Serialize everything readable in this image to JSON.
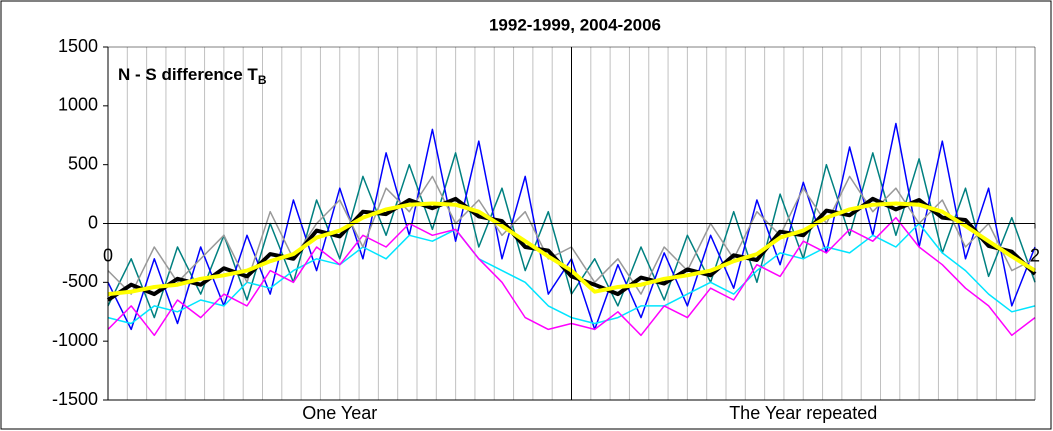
{
  "chart_data": {
    "type": "line",
    "title": "1992-1999, 2004-2006",
    "annotation": {
      "text": "N - S difference T",
      "subscript": "B"
    },
    "section_labels": [
      "One Year",
      "The Year repeated"
    ],
    "xlim": [
      0,
      2
    ],
    "xticks": [
      0,
      2
    ],
    "ylim": [
      -1500,
      1500
    ],
    "yticks": [
      -1500,
      -1000,
      -500,
      0,
      500,
      1000,
      1500
    ],
    "x": [
      0,
      0.05,
      0.1,
      0.15,
      0.2,
      0.25,
      0.3,
      0.35,
      0.4,
      0.45,
      0.5,
      0.55,
      0.6,
      0.65,
      0.7,
      0.75,
      0.8,
      0.85,
      0.9,
      0.95,
      1,
      1.05,
      1.1,
      1.15,
      1.2,
      1.25,
      1.3,
      1.35,
      1.4,
      1.45,
      1.5,
      1.55,
      1.6,
      1.65,
      1.7,
      1.75,
      1.8,
      1.85,
      1.9,
      1.95,
      2
    ],
    "series": [
      {
        "color": "#008080",
        "width": 1.5,
        "values": [
          -700,
          -300,
          -800,
          -200,
          -600,
          -100,
          -650,
          0,
          -500,
          200,
          -300,
          400,
          -100,
          500,
          -50,
          600,
          -200,
          300,
          -400,
          100,
          -600,
          -300,
          -700,
          -200,
          -650,
          -100,
          -500,
          100,
          -500,
          250,
          -300,
          500,
          -100,
          600,
          -100,
          550,
          -250,
          300,
          -450,
          50,
          -500
        ]
      },
      {
        "color": "#0000ff",
        "width": 1.5,
        "values": [
          -500,
          -900,
          -300,
          -850,
          -200,
          -700,
          -100,
          -600,
          200,
          -400,
          300,
          -300,
          600,
          -100,
          800,
          -150,
          700,
          -300,
          400,
          -600,
          -300,
          -900,
          -350,
          -800,
          -250,
          -700,
          -100,
          -550,
          200,
          -350,
          350,
          -250,
          650,
          -100,
          850,
          -200,
          700,
          -300,
          300,
          -700,
          -200
        ]
      },
      {
        "color": "#00e5ff",
        "width": 1.5,
        "values": [
          -800,
          -850,
          -700,
          -750,
          -650,
          -700,
          -500,
          -550,
          -400,
          -300,
          -350,
          -200,
          -300,
          -100,
          -150,
          -50,
          -300,
          -400,
          -500,
          -700,
          -800,
          -850,
          -800,
          -700,
          -700,
          -600,
          -500,
          -600,
          -400,
          -250,
          -300,
          -200,
          -250,
          -100,
          -200,
          0,
          -250,
          -400,
          -600,
          -750,
          -700
        ]
      },
      {
        "color": "#ff00ff",
        "width": 1.5,
        "values": [
          -900,
          -700,
          -950,
          -650,
          -800,
          -600,
          -700,
          -400,
          -500,
          -200,
          -350,
          -100,
          -200,
          0,
          -100,
          -50,
          -300,
          -500,
          -800,
          -900,
          -850,
          -900,
          -750,
          -950,
          -700,
          -800,
          -550,
          -650,
          -350,
          -450,
          -150,
          -250,
          -50,
          -150,
          50,
          -200,
          -350,
          -550,
          -700,
          -950,
          -800
        ]
      },
      {
        "color": "#999999",
        "width": 1.5,
        "values": [
          -400,
          -600,
          -200,
          -500,
          -300,
          -100,
          -500,
          100,
          -300,
          0,
          200,
          -200,
          300,
          100,
          400,
          0,
          200,
          -100,
          100,
          -300,
          -200,
          -500,
          -300,
          -600,
          -200,
          -400,
          0,
          -300,
          100,
          -100,
          300,
          0,
          400,
          100,
          300,
          0,
          200,
          -200,
          0,
          -400,
          -300
        ]
      },
      {
        "color": "#000000",
        "width": 4,
        "values": [
          -650,
          -520,
          -600,
          -470,
          -520,
          -380,
          -450,
          -260,
          -300,
          -60,
          -110,
          100,
          80,
          200,
          130,
          210,
          60,
          20,
          -200,
          -230,
          -450,
          -520,
          -600,
          -460,
          -510,
          -390,
          -440,
          -270,
          -310,
          -70,
          -100,
          110,
          70,
          210,
          120,
          200,
          50,
          30,
          -190,
          -240,
          -430
        ]
      },
      {
        "color": "#ffff00",
        "width": 4,
        "values": [
          -600,
          -580,
          -540,
          -520,
          -470,
          -440,
          -400,
          -320,
          -260,
          -120,
          -60,
          50,
          120,
          160,
          170,
          160,
          100,
          -20,
          -150,
          -280,
          -400,
          -580,
          -540,
          -520,
          -470,
          -440,
          -400,
          -320,
          -260,
          -120,
          -60,
          50,
          120,
          160,
          170,
          160,
          100,
          -20,
          -150,
          -280,
          -400
        ]
      }
    ]
  }
}
